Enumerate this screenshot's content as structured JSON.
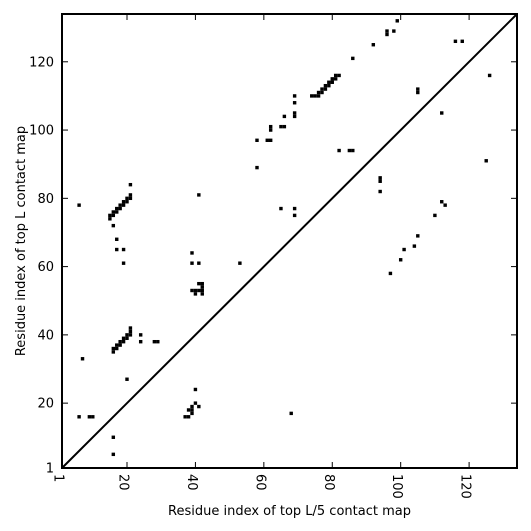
{
  "chart_data": {
    "type": "scatter",
    "xlabel": "Residue index of top L/5 contact map",
    "ylabel": "Residue index of top L contact map",
    "xlim": [
      1,
      134
    ],
    "ylim": [
      1,
      134
    ],
    "grid": false,
    "diagonal_line": true,
    "marker_color": "#000000",
    "x_ticks": [
      {
        "value": 1,
        "label": "1"
      },
      {
        "value": 20,
        "label": "20"
      },
      {
        "value": 40,
        "label": "40"
      },
      {
        "value": 60,
        "label": "60"
      },
      {
        "value": 80,
        "label": "80"
      },
      {
        "value": 100,
        "label": "100"
      },
      {
        "value": 120,
        "label": "120"
      }
    ],
    "y_ticks": [
      {
        "value": 1,
        "label": "1"
      },
      {
        "value": 20,
        "label": "20"
      },
      {
        "value": 40,
        "label": "40"
      },
      {
        "value": 60,
        "label": "60"
      },
      {
        "value": 80,
        "label": "80"
      },
      {
        "value": 100,
        "label": "100"
      },
      {
        "value": 120,
        "label": "120"
      }
    ],
    "points_above_diagonal": [
      [
        6,
        78
      ],
      [
        15,
        74
      ],
      [
        15,
        75
      ],
      [
        16,
        75
      ],
      [
        16,
        76
      ],
      [
        17,
        76
      ],
      [
        17,
        77
      ],
      [
        18,
        77
      ],
      [
        18,
        78
      ],
      [
        19,
        78
      ],
      [
        19,
        79
      ],
      [
        20,
        79
      ],
      [
        20,
        80
      ],
      [
        21,
        80
      ],
      [
        21,
        81
      ],
      [
        21,
        84
      ],
      [
        16,
        72
      ],
      [
        17,
        68
      ],
      [
        17,
        65
      ],
      [
        19,
        65
      ],
      [
        19,
        61
      ],
      [
        7,
        33
      ],
      [
        16,
        35
      ],
      [
        16,
        36
      ],
      [
        17,
        36
      ],
      [
        17,
        37
      ],
      [
        18,
        37
      ],
      [
        18,
        38
      ],
      [
        19,
        38
      ],
      [
        19,
        39
      ],
      [
        20,
        39
      ],
      [
        20,
        40
      ],
      [
        21,
        40
      ],
      [
        21,
        41
      ],
      [
        21,
        42
      ],
      [
        24,
        38
      ],
      [
        24,
        40
      ],
      [
        28,
        38
      ],
      [
        29,
        38
      ],
      [
        39,
        64
      ],
      [
        39,
        61
      ],
      [
        41,
        61
      ],
      [
        39,
        53
      ],
      [
        40,
        53
      ],
      [
        41,
        53
      ],
      [
        42,
        53
      ],
      [
        42,
        54
      ],
      [
        42,
        55
      ],
      [
        41,
        55
      ],
      [
        41,
        81
      ],
      [
        40,
        52
      ],
      [
        42,
        52
      ],
      [
        53,
        61
      ],
      [
        58,
        97
      ],
      [
        58,
        89
      ],
      [
        61,
        97
      ],
      [
        62,
        97
      ],
      [
        62,
        100
      ],
      [
        62,
        101
      ],
      [
        65,
        101
      ],
      [
        66,
        101
      ],
      [
        66,
        104
      ],
      [
        69,
        104
      ],
      [
        69,
        105
      ],
      [
        69,
        108
      ],
      [
        69,
        110
      ],
      [
        65,
        77
      ],
      [
        69,
        77
      ],
      [
        74,
        110
      ],
      [
        75,
        110
      ],
      [
        76,
        110
      ],
      [
        76,
        111
      ],
      [
        77,
        111
      ],
      [
        77,
        112
      ],
      [
        78,
        112
      ],
      [
        78,
        113
      ],
      [
        79,
        113
      ],
      [
        79,
        114
      ],
      [
        80,
        114
      ],
      [
        80,
        115
      ],
      [
        81,
        115
      ],
      [
        81,
        116
      ],
      [
        82,
        116
      ],
      [
        82,
        94
      ],
      [
        85,
        94
      ],
      [
        86,
        94
      ],
      [
        86,
        121
      ],
      [
        92,
        125
      ],
      [
        96,
        128
      ],
      [
        96,
        129
      ],
      [
        98,
        129
      ],
      [
        99,
        132
      ],
      [
        105,
        111
      ],
      [
        105,
        112
      ],
      [
        112,
        105
      ],
      [
        116,
        126
      ],
      [
        118,
        126
      ],
      [
        126,
        116
      ]
    ],
    "points_below_diagonal": [
      [
        6,
        16
      ],
      [
        9,
        16
      ],
      [
        10,
        16
      ],
      [
        16,
        10
      ],
      [
        16,
        5
      ],
      [
        20,
        27
      ],
      [
        37,
        16
      ],
      [
        38,
        16
      ],
      [
        38,
        18
      ],
      [
        39,
        17
      ],
      [
        39,
        18
      ],
      [
        39,
        19
      ],
      [
        40,
        20
      ],
      [
        40,
        24
      ],
      [
        41,
        19
      ],
      [
        68,
        17
      ],
      [
        69,
        75
      ],
      [
        94,
        82
      ],
      [
        94,
        85
      ],
      [
        94,
        86
      ],
      [
        97,
        58
      ],
      [
        100,
        62
      ],
      [
        101,
        65
      ],
      [
        104,
        66
      ],
      [
        105,
        69
      ],
      [
        110,
        75
      ],
      [
        112,
        79
      ],
      [
        113,
        78
      ],
      [
        125,
        91
      ]
    ]
  }
}
